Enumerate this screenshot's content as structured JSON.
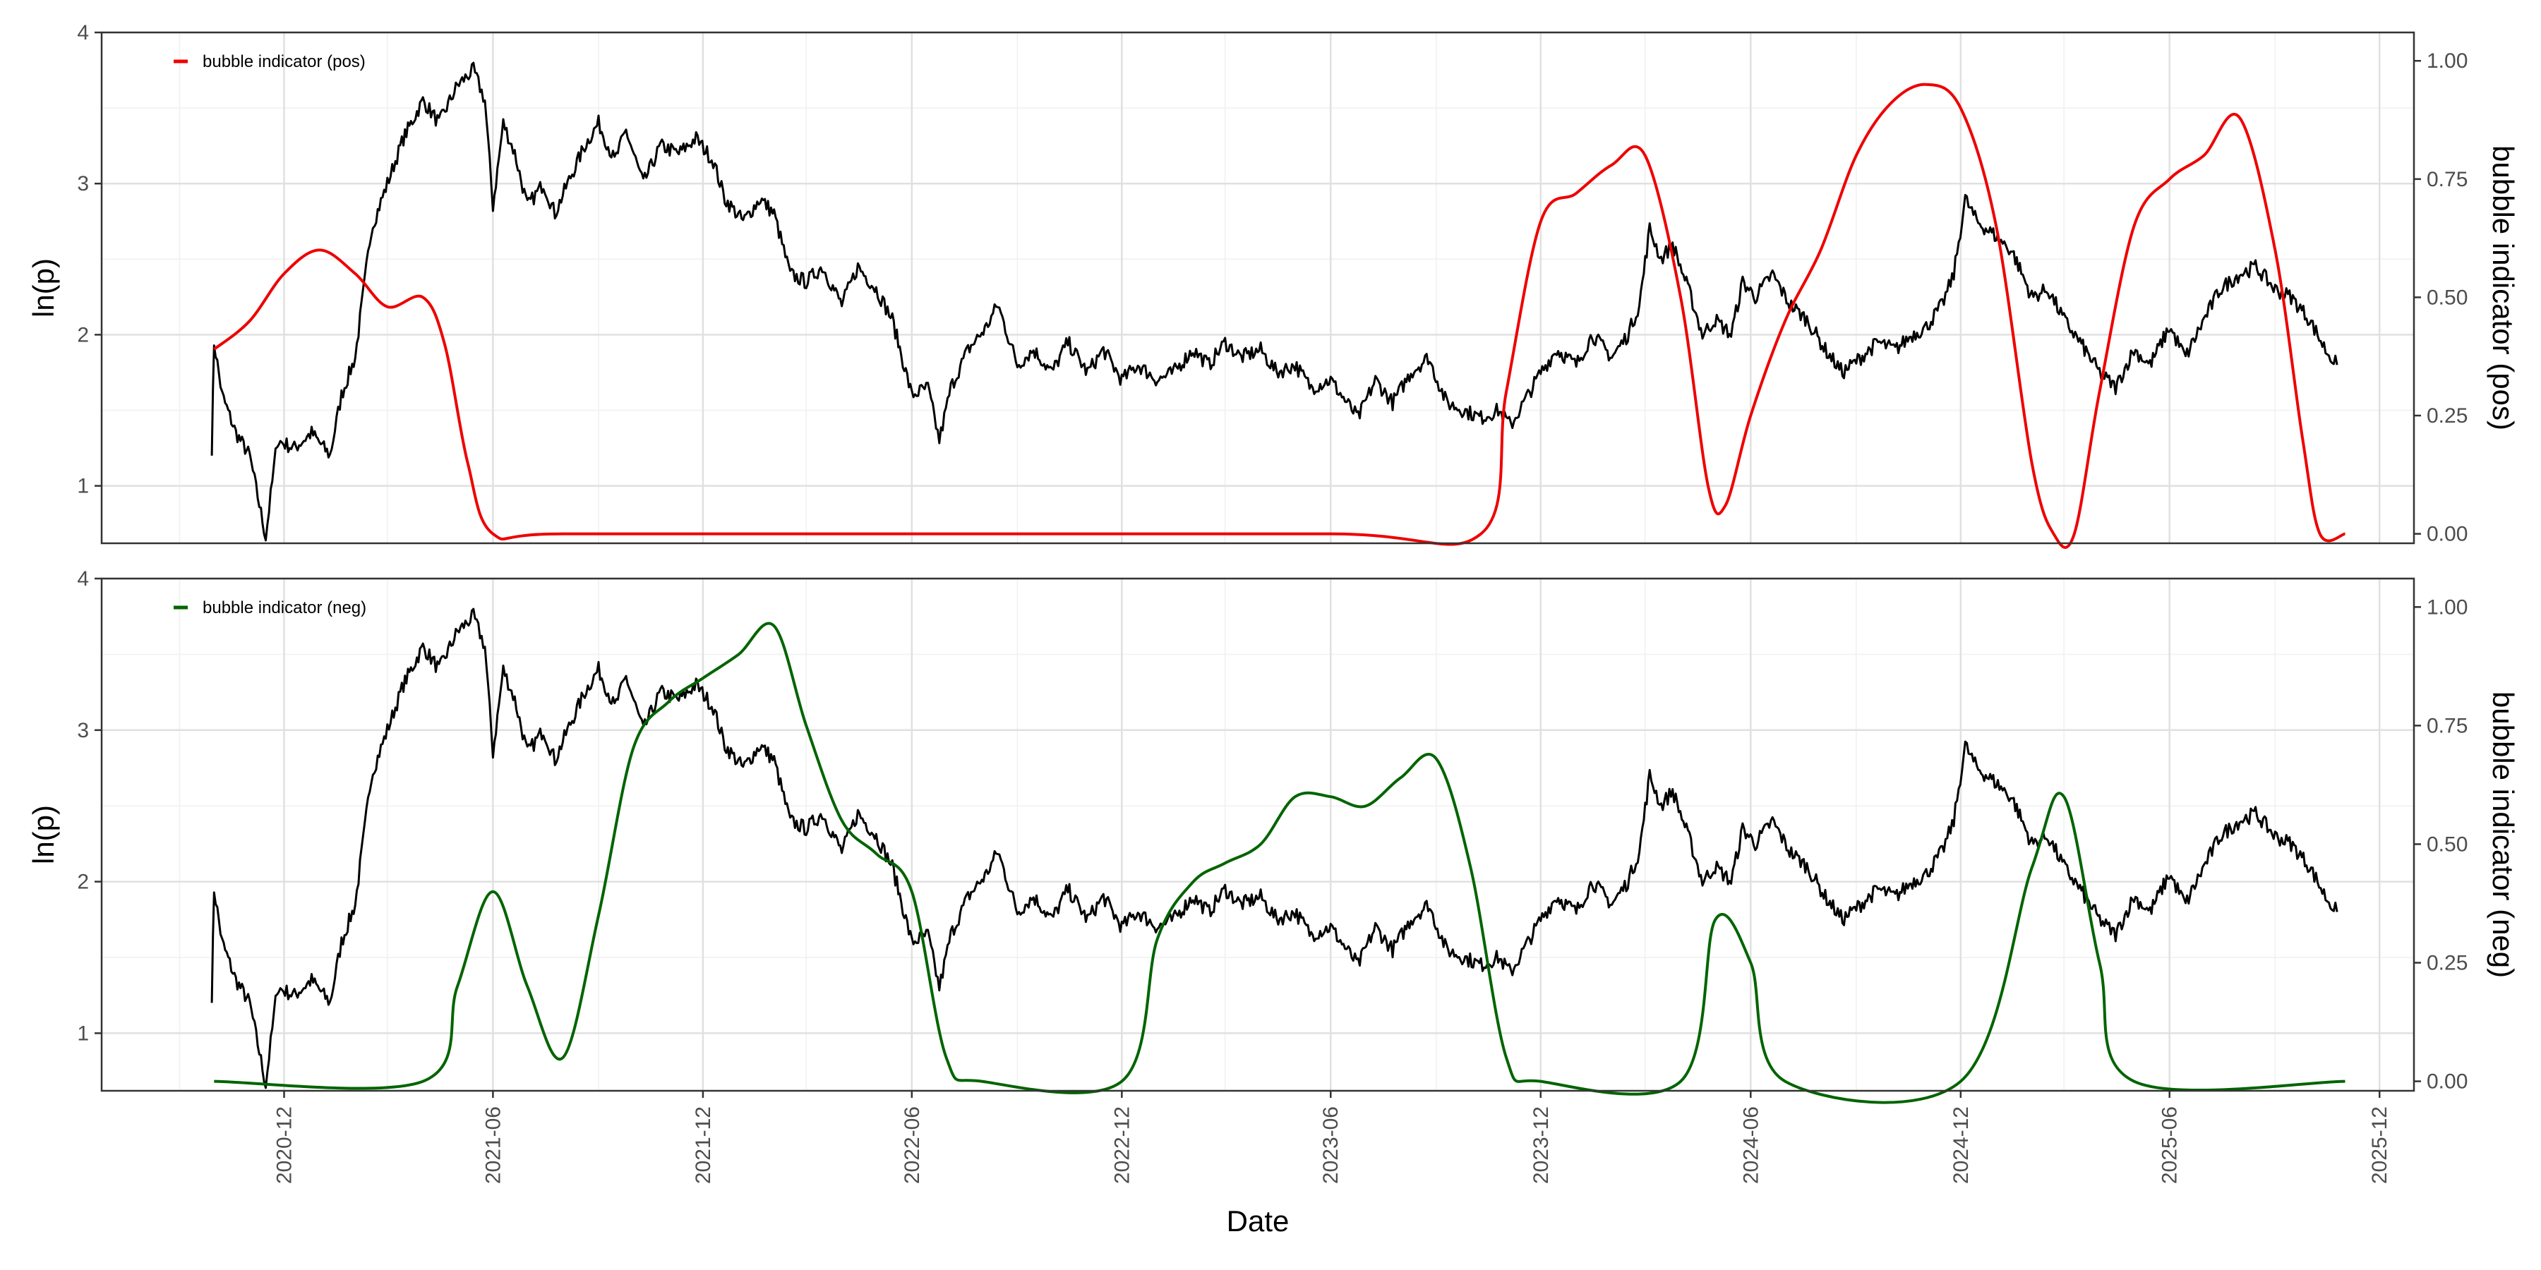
{
  "chart_data": [
    {
      "type": "line",
      "panel": "top",
      "xlabel": "",
      "ylabel": "ln(p)",
      "ylabel_right": "bubble indicator (pos)",
      "ylim": [
        0.62,
        4.0
      ],
      "ylim_right": [
        -0.02,
        1.06
      ],
      "yticks": [
        "1",
        "2",
        "3",
        "4"
      ],
      "yticks_right": [
        "0.00",
        "0.25",
        "0.50",
        "0.75",
        "1.00"
      ],
      "xlim": [
        "2020-06-25",
        "2025-12-31"
      ],
      "legend": {
        "position": "top-left",
        "label": "bubble indicator (pos)",
        "color": "#ee0000"
      },
      "series": [
        {
          "name": "ln(p)",
          "axis": "left",
          "color": "#000000",
          "points": [
            [
              "2020-09-29",
              1.25
            ],
            [
              "2020-10-01",
              1.95
            ],
            [
              "2020-10-08",
              1.6
            ],
            [
              "2020-10-20",
              1.35
            ],
            [
              "2020-11-01",
              1.2
            ],
            [
              "2020-11-15",
              0.66
            ],
            [
              "2020-11-25",
              1.3
            ],
            [
              "2020-12-10",
              1.25
            ],
            [
              "2020-12-25",
              1.35
            ],
            [
              "2021-01-10",
              1.2
            ],
            [
              "2021-01-20",
              1.6
            ],
            [
              "2021-02-01",
              1.85
            ],
            [
              "2021-02-15",
              2.7
            ],
            [
              "2021-03-01",
              3.0
            ],
            [
              "2021-03-15",
              3.3
            ],
            [
              "2021-04-01",
              3.55
            ],
            [
              "2021-04-15",
              3.4
            ],
            [
              "2021-05-01",
              3.65
            ],
            [
              "2021-05-15",
              3.75
            ],
            [
              "2021-05-25",
              3.55
            ],
            [
              "2021-06-01",
              2.85
            ],
            [
              "2021-06-10",
              3.4
            ],
            [
              "2021-06-20",
              3.2
            ],
            [
              "2021-07-01",
              2.85
            ],
            [
              "2021-07-15",
              3.0
            ],
            [
              "2021-07-25",
              2.8
            ],
            [
              "2021-08-05",
              3.0
            ],
            [
              "2021-08-20",
              3.25
            ],
            [
              "2021-09-01",
              3.4
            ],
            [
              "2021-09-15",
              3.15
            ],
            [
              "2021-09-25",
              3.35
            ],
            [
              "2021-10-10",
              3.0
            ],
            [
              "2021-10-25",
              3.25
            ],
            [
              "2021-11-10",
              3.2
            ],
            [
              "2021-11-25",
              3.3
            ],
            [
              "2021-12-10",
              3.15
            ],
            [
              "2021-12-20",
              2.9
            ],
            [
              "2022-01-05",
              2.75
            ],
            [
              "2022-01-20",
              2.9
            ],
            [
              "2022-02-01",
              2.8
            ],
            [
              "2022-02-15",
              2.4
            ],
            [
              "2022-03-01",
              2.35
            ],
            [
              "2022-03-15",
              2.45
            ],
            [
              "2022-04-01",
              2.2
            ],
            [
              "2022-04-15",
              2.45
            ],
            [
              "2022-05-01",
              2.3
            ],
            [
              "2022-05-15",
              2.1
            ],
            [
              "2022-06-01",
              1.6
            ],
            [
              "2022-06-15",
              1.65
            ],
            [
              "2022-06-25",
              1.3
            ],
            [
              "2022-07-05",
              1.65
            ],
            [
              "2022-07-20",
              1.9
            ],
            [
              "2022-08-05",
              2.05
            ],
            [
              "2022-08-15",
              2.2
            ],
            [
              "2022-09-01",
              1.8
            ],
            [
              "2022-09-15",
              1.9
            ],
            [
              "2022-10-01",
              1.75
            ],
            [
              "2022-10-15",
              1.95
            ],
            [
              "2022-11-01",
              1.75
            ],
            [
              "2022-11-15",
              1.9
            ],
            [
              "2022-12-01",
              1.7
            ],
            [
              "2022-12-15",
              1.8
            ],
            [
              "2023-01-01",
              1.7
            ],
            [
              "2023-01-15",
              1.75
            ],
            [
              "2023-02-01",
              1.9
            ],
            [
              "2023-02-15",
              1.8
            ],
            [
              "2023-03-01",
              1.95
            ],
            [
              "2023-03-15",
              1.85
            ],
            [
              "2023-04-01",
              1.9
            ],
            [
              "2023-04-15",
              1.75
            ],
            [
              "2023-05-01",
              1.8
            ],
            [
              "2023-05-15",
              1.65
            ],
            [
              "2023-06-01",
              1.7
            ],
            [
              "2023-06-15",
              1.55
            ],
            [
              "2023-06-25",
              1.45
            ],
            [
              "2023-07-10",
              1.7
            ],
            [
              "2023-07-25",
              1.55
            ],
            [
              "2023-08-10",
              1.75
            ],
            [
              "2023-08-25",
              1.85
            ],
            [
              "2023-09-10",
              1.55
            ],
            [
              "2023-09-25",
              1.5
            ],
            [
              "2023-10-10",
              1.45
            ],
            [
              "2023-10-25",
              1.5
            ],
            [
              "2023-11-05",
              1.4
            ],
            [
              "2023-11-20",
              1.6
            ],
            [
              "2023-12-01",
              1.75
            ],
            [
              "2023-12-15",
              1.9
            ],
            [
              "2024-01-01",
              1.8
            ],
            [
              "2024-01-15",
              2.0
            ],
            [
              "2024-02-01",
              1.85
            ],
            [
              "2024-02-15",
              2.0
            ],
            [
              "2024-02-25",
              2.2
            ],
            [
              "2024-03-05",
              2.7
            ],
            [
              "2024-03-15",
              2.5
            ],
            [
              "2024-03-25",
              2.6
            ],
            [
              "2024-04-10",
              2.25
            ],
            [
              "2024-04-20",
              2.0
            ],
            [
              "2024-05-01",
              2.1
            ],
            [
              "2024-05-15",
              2.0
            ],
            [
              "2024-05-25",
              2.35
            ],
            [
              "2024-06-05",
              2.25
            ],
            [
              "2024-06-20",
              2.4
            ],
            [
              "2024-07-05",
              2.2
            ],
            [
              "2024-07-20",
              2.1
            ],
            [
              "2024-08-05",
              1.9
            ],
            [
              "2024-08-20",
              1.75
            ],
            [
              "2024-09-05",
              1.85
            ],
            [
              "2024-09-20",
              1.95
            ],
            [
              "2024-10-05",
              1.9
            ],
            [
              "2024-10-20",
              2.0
            ],
            [
              "2024-11-01",
              2.05
            ],
            [
              "2024-11-15",
              2.2
            ],
            [
              "2024-11-25",
              2.4
            ],
            [
              "2024-12-05",
              2.9
            ],
            [
              "2024-12-15",
              2.75
            ],
            [
              "2025-01-01",
              2.65
            ],
            [
              "2025-01-15",
              2.55
            ],
            [
              "2025-02-01",
              2.25
            ],
            [
              "2025-02-15",
              2.3
            ],
            [
              "2025-03-01",
              2.1
            ],
            [
              "2025-03-15",
              1.95
            ],
            [
              "2025-04-01",
              1.75
            ],
            [
              "2025-04-15",
              1.65
            ],
            [
              "2025-05-01",
              1.9
            ],
            [
              "2025-05-15",
              1.8
            ],
            [
              "2025-06-01",
              2.05
            ],
            [
              "2025-06-15",
              1.85
            ],
            [
              "2025-07-01",
              2.1
            ],
            [
              "2025-07-15",
              2.3
            ],
            [
              "2025-08-01",
              2.4
            ],
            [
              "2025-08-15",
              2.45
            ],
            [
              "2025-09-01",
              2.3
            ],
            [
              "2025-09-15",
              2.25
            ],
            [
              "2025-10-01",
              2.1
            ],
            [
              "2025-10-15",
              1.9
            ],
            [
              "2025-10-25",
              1.8
            ]
          ]
        },
        {
          "name": "bubble indicator (pos)",
          "axis": "right",
          "color": "#ee0000",
          "points": [
            [
              "2020-10-01",
              0.39
            ],
            [
              "2020-11-01",
              0.45
            ],
            [
              "2020-12-01",
              0.55
            ],
            [
              "2021-01-01",
              0.6
            ],
            [
              "2021-02-01",
              0.55
            ],
            [
              "2021-03-01",
              0.48
            ],
            [
              "2021-04-01",
              0.5
            ],
            [
              "2021-04-20",
              0.4
            ],
            [
              "2021-05-10",
              0.15
            ],
            [
              "2021-06-01",
              0.0
            ],
            [
              "2021-08-01",
              0.0
            ],
            [
              "2022-06-01",
              0.0
            ],
            [
              "2023-06-01",
              0.0
            ],
            [
              "2023-10-10",
              0.0
            ],
            [
              "2023-11-01",
              0.3
            ],
            [
              "2023-12-01",
              0.66
            ],
            [
              "2024-01-01",
              0.72
            ],
            [
              "2024-02-01",
              0.78
            ],
            [
              "2024-03-01",
              0.8
            ],
            [
              "2024-04-01",
              0.5
            ],
            [
              "2024-04-25",
              0.1
            ],
            [
              "2024-05-10",
              0.06
            ],
            [
              "2024-06-01",
              0.25
            ],
            [
              "2024-07-01",
              0.45
            ],
            [
              "2024-08-01",
              0.6
            ],
            [
              "2024-09-01",
              0.8
            ],
            [
              "2024-10-01",
              0.91
            ],
            [
              "2024-11-01",
              0.95
            ],
            [
              "2024-12-01",
              0.9
            ],
            [
              "2025-01-01",
              0.65
            ],
            [
              "2025-02-01",
              0.15
            ],
            [
              "2025-02-20",
              0.0
            ],
            [
              "2025-03-10",
              0.0
            ],
            [
              "2025-04-01",
              0.3
            ],
            [
              "2025-05-01",
              0.65
            ],
            [
              "2025-06-01",
              0.75
            ],
            [
              "2025-07-01",
              0.8
            ],
            [
              "2025-08-01",
              0.88
            ],
            [
              "2025-09-01",
              0.6
            ],
            [
              "2025-09-25",
              0.2
            ],
            [
              "2025-10-10",
              0.0
            ],
            [
              "2025-11-01",
              0.0
            ]
          ]
        }
      ]
    },
    {
      "type": "line",
      "panel": "bottom",
      "xlabel": "Date",
      "ylabel": "ln(p)",
      "ylabel_right": "bubble indicator (neg)",
      "ylim": [
        0.62,
        4.0
      ],
      "ylim_right": [
        -0.02,
        1.06
      ],
      "yticks": [
        "1",
        "2",
        "3",
        "4"
      ],
      "yticks_right": [
        "0.00",
        "0.25",
        "0.50",
        "0.75",
        "1.00"
      ],
      "xlim": [
        "2020-06-25",
        "2025-12-31"
      ],
      "xticks": [
        "2020-12",
        "2021-06",
        "2021-12",
        "2022-06",
        "2022-12",
        "2023-06",
        "2023-12",
        "2024-06",
        "2024-12",
        "2025-06",
        "2025-12"
      ],
      "legend": {
        "position": "top-left",
        "label": "bubble indicator (neg)",
        "color": "#006400"
      },
      "series": [
        {
          "name": "ln(p)",
          "axis": "left",
          "color": "#000000",
          "points": "same as top panel"
        },
        {
          "name": "bubble indicator (neg)",
          "axis": "right",
          "color": "#006400",
          "points": [
            [
              "2020-10-01",
              0.0
            ],
            [
              "2021-04-01",
              0.0
            ],
            [
              "2021-05-01",
              0.2
            ],
            [
              "2021-06-01",
              0.4
            ],
            [
              "2021-07-01",
              0.2
            ],
            [
              "2021-08-01",
              0.05
            ],
            [
              "2021-09-01",
              0.35
            ],
            [
              "2021-10-01",
              0.7
            ],
            [
              "2021-11-01",
              0.8
            ],
            [
              "2021-12-01",
              0.85
            ],
            [
              "2022-01-01",
              0.9
            ],
            [
              "2022-02-01",
              0.96
            ],
            [
              "2022-03-01",
              0.75
            ],
            [
              "2022-04-01",
              0.55
            ],
            [
              "2022-05-01",
              0.48
            ],
            [
              "2022-06-01",
              0.4
            ],
            [
              "2022-07-01",
              0.05
            ],
            [
              "2022-08-01",
              0.0
            ],
            [
              "2022-12-01",
              0.0
            ],
            [
              "2023-01-01",
              0.3
            ],
            [
              "2023-02-01",
              0.42
            ],
            [
              "2023-03-01",
              0.46
            ],
            [
              "2023-04-01",
              0.5
            ],
            [
              "2023-05-01",
              0.6
            ],
            [
              "2023-06-01",
              0.6
            ],
            [
              "2023-07-01",
              0.58
            ],
            [
              "2023-08-01",
              0.64
            ],
            [
              "2023-09-01",
              0.68
            ],
            [
              "2023-10-01",
              0.45
            ],
            [
              "2023-11-01",
              0.05
            ],
            [
              "2023-12-01",
              0.0
            ],
            [
              "2024-04-01",
              0.0
            ],
            [
              "2024-05-01",
              0.34
            ],
            [
              "2024-06-01",
              0.25
            ],
            [
              "2024-07-01",
              0.0
            ],
            [
              "2024-12-01",
              0.0
            ],
            [
              "2025-02-01",
              0.45
            ],
            [
              "2025-03-01",
              0.6
            ],
            [
              "2025-04-01",
              0.25
            ],
            [
              "2025-05-01",
              0.0
            ],
            [
              "2025-11-01",
              0.0
            ]
          ]
        }
      ]
    }
  ]
}
